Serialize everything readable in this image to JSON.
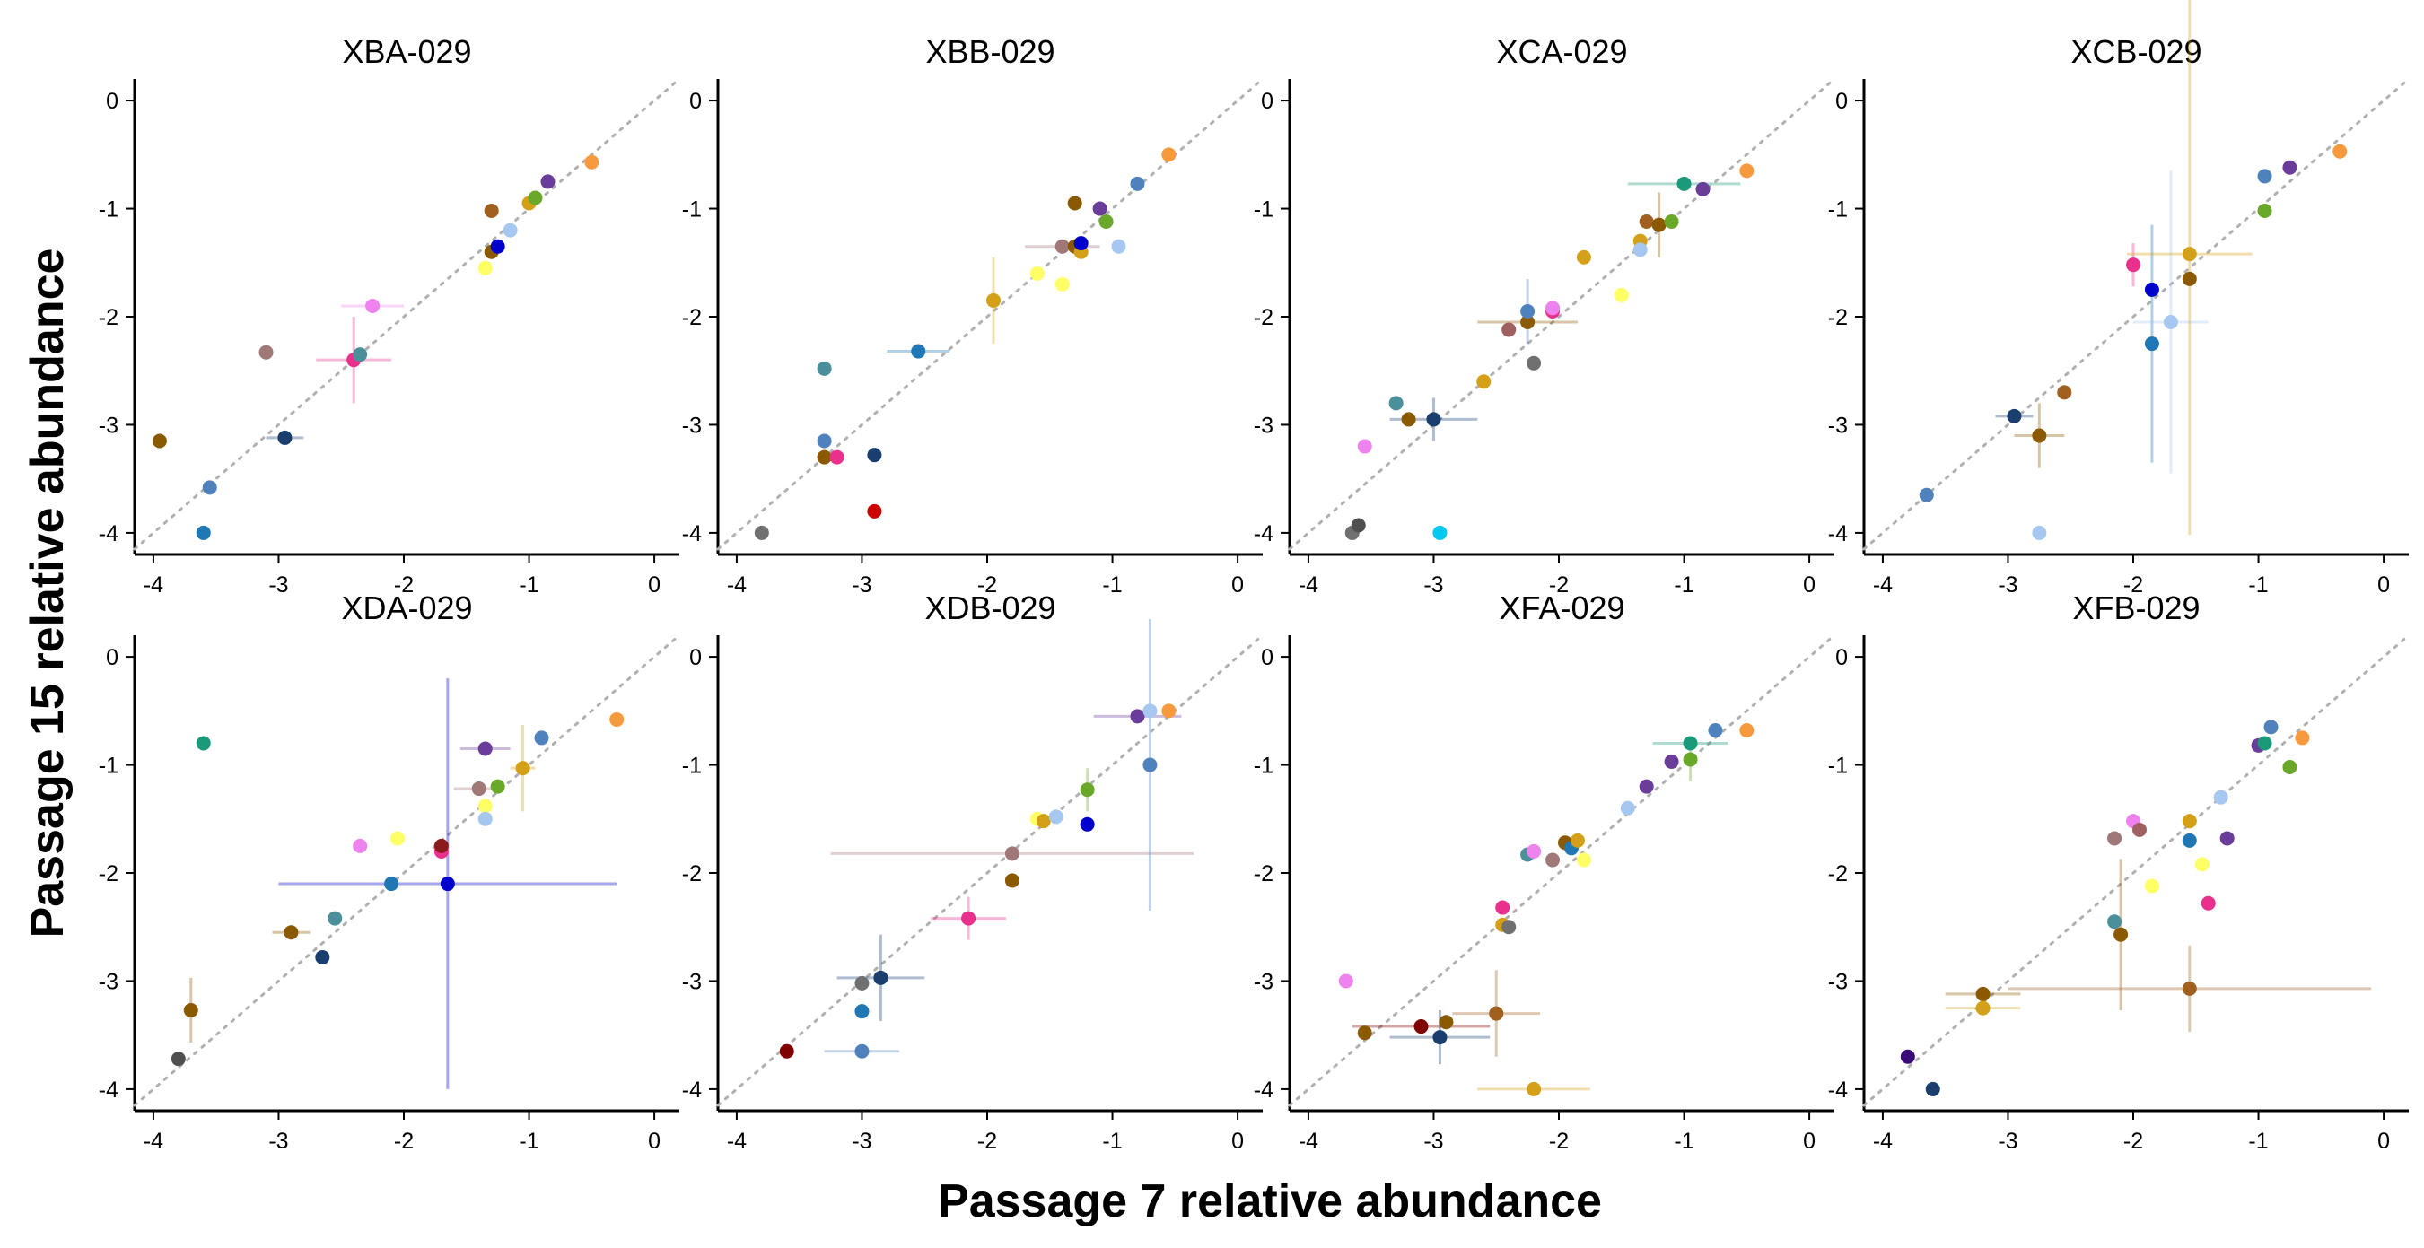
{
  "chart_data": {
    "type": "scatter",
    "xlabel": "Passage 7 relative abundance",
    "ylabel": "Passage 15 relative abundance",
    "xlim": [
      -4.15,
      0.2
    ],
    "ylim": [
      -4.2,
      0.2
    ],
    "x_ticks": [
      "-4",
      "-3",
      "-2",
      "-1",
      "0"
    ],
    "y_ticks": [
      "0",
      "-1",
      "-2",
      "-3",
      "-4"
    ],
    "reference_line": "y = x (dotted gray)",
    "grid": false,
    "legend": "none",
    "panels": [
      {
        "title": "XBA-029",
        "points": [
          {
            "x": -3.95,
            "y": -3.15,
            "color": "#8b5a00"
          },
          {
            "x": -3.6,
            "y": -4.0,
            "color": "#1f77b4"
          },
          {
            "x": -3.55,
            "y": -3.58,
            "color": "#4f81bd"
          },
          {
            "x": -2.95,
            "y": -3.12,
            "color": "#1a3f6f",
            "xerr": 0.15
          },
          {
            "x": -3.1,
            "y": -2.33,
            "color": "#a07878"
          },
          {
            "x": -2.4,
            "y": -2.4,
            "color": "#e8308c",
            "xerr": 0.3,
            "yerr": 0.4
          },
          {
            "x": -2.35,
            "y": -2.35,
            "color": "#4a8f9a"
          },
          {
            "x": -2.25,
            "y": -1.9,
            "color": "#ee82ee",
            "xerr": 0.25
          },
          {
            "x": -1.35,
            "y": -1.55,
            "color": "#ffff66"
          },
          {
            "x": -1.3,
            "y": -1.4,
            "color": "#8b5a00"
          },
          {
            "x": -1.25,
            "y": -1.35,
            "color": "#0000cc"
          },
          {
            "x": -1.15,
            "y": -1.2,
            "color": "#a6c8f0"
          },
          {
            "x": -1.3,
            "y": -1.02,
            "color": "#a06020"
          },
          {
            "x": -1.0,
            "y": -0.95,
            "color": "#d4a017"
          },
          {
            "x": -0.95,
            "y": -0.9,
            "color": "#6aa82a"
          },
          {
            "x": -0.85,
            "y": -0.75,
            "color": "#6a3d9a"
          },
          {
            "x": -0.5,
            "y": -0.57,
            "color": "#f79a3e"
          }
        ]
      },
      {
        "title": "XBB-029",
        "points": [
          {
            "x": -3.8,
            "y": -4.0,
            "color": "#707070"
          },
          {
            "x": -3.3,
            "y": -3.15,
            "color": "#4f81bd"
          },
          {
            "x": -3.3,
            "y": -3.3,
            "color": "#8b5a00"
          },
          {
            "x": -3.2,
            "y": -3.3,
            "color": "#e8308c"
          },
          {
            "x": -2.9,
            "y": -3.28,
            "color": "#1a3f6f"
          },
          {
            "x": -2.9,
            "y": -3.8,
            "color": "#cc0000"
          },
          {
            "x": -3.3,
            "y": -2.48,
            "color": "#4a8f9a"
          },
          {
            "x": -2.55,
            "y": -2.32,
            "color": "#1f77b4",
            "xerr": 0.25
          },
          {
            "x": -1.95,
            "y": -1.85,
            "color": "#d4a017",
            "yerr": 0.4
          },
          {
            "x": -1.6,
            "y": -1.6,
            "color": "#ffff66"
          },
          {
            "x": -1.4,
            "y": -1.7,
            "color": "#ffff66"
          },
          {
            "x": -1.4,
            "y": -1.35,
            "color": "#a07878",
            "xerr": 0.3
          },
          {
            "x": -1.3,
            "y": -1.35,
            "color": "#8b5a00"
          },
          {
            "x": -1.25,
            "y": -1.4,
            "color": "#d4a017"
          },
          {
            "x": -1.25,
            "y": -1.32,
            "color": "#0000cc"
          },
          {
            "x": -1.3,
            "y": -0.95,
            "color": "#8b5a00"
          },
          {
            "x": -1.1,
            "y": -1.0,
            "color": "#6a3d9a"
          },
          {
            "x": -1.05,
            "y": -1.12,
            "color": "#6aa82a"
          },
          {
            "x": -0.95,
            "y": -1.35,
            "color": "#a6c8f0"
          },
          {
            "x": -0.8,
            "y": -0.77,
            "color": "#4f81bd"
          },
          {
            "x": -0.55,
            "y": -0.5,
            "color": "#f79a3e"
          }
        ]
      },
      {
        "title": "XCA-029",
        "points": [
          {
            "x": -3.65,
            "y": -4.0,
            "color": "#707070"
          },
          {
            "x": -3.6,
            "y": -3.93,
            "color": "#505050"
          },
          {
            "x": -3.55,
            "y": -3.2,
            "color": "#ee82ee"
          },
          {
            "x": -3.3,
            "y": -2.8,
            "color": "#4a8f9a"
          },
          {
            "x": -3.2,
            "y": -2.95,
            "color": "#8b5a00"
          },
          {
            "x": -3.0,
            "y": -2.95,
            "color": "#1a3f6f",
            "xerr": 0.35,
            "yerr": 0.2
          },
          {
            "x": -2.95,
            "y": -4.0,
            "color": "#00c8f0"
          },
          {
            "x": -2.6,
            "y": -2.6,
            "color": "#d4a017"
          },
          {
            "x": -2.4,
            "y": -2.12,
            "color": "#a06060"
          },
          {
            "x": -2.25,
            "y": -2.05,
            "color": "#8b5a00",
            "xerr": 0.4
          },
          {
            "x": -2.25,
            "y": -1.95,
            "color": "#4f81bd",
            "yerr": 0.3
          },
          {
            "x": -2.2,
            "y": -2.43,
            "color": "#707070"
          },
          {
            "x": -2.05,
            "y": -1.95,
            "color": "#e8308c"
          },
          {
            "x": -2.05,
            "y": -1.92,
            "color": "#ee82ee"
          },
          {
            "x": -1.8,
            "y": -1.45,
            "color": "#d4a017"
          },
          {
            "x": -1.5,
            "y": -1.8,
            "color": "#ffff66"
          },
          {
            "x": -1.35,
            "y": -1.3,
            "color": "#d4a017"
          },
          {
            "x": -1.35,
            "y": -1.38,
            "color": "#a6c8f0"
          },
          {
            "x": -1.3,
            "y": -1.12,
            "color": "#a06020"
          },
          {
            "x": -1.2,
            "y": -1.15,
            "color": "#8b5a00",
            "yerr": 0.3
          },
          {
            "x": -1.1,
            "y": -1.12,
            "color": "#6aa82a"
          },
          {
            "x": -1.0,
            "y": -0.77,
            "color": "#1a9a78",
            "xerr": 0.45
          },
          {
            "x": -0.85,
            "y": -0.82,
            "color": "#6a3d9a"
          },
          {
            "x": -0.5,
            "y": -0.65,
            "color": "#f79a3e"
          }
        ]
      },
      {
        "title": "XCB-029",
        "points": [
          {
            "x": -3.65,
            "y": -3.65,
            "color": "#4f81bd"
          },
          {
            "x": -2.95,
            "y": -2.92,
            "color": "#1a3f6f",
            "xerr": 0.15
          },
          {
            "x": -2.75,
            "y": -3.1,
            "color": "#8b5a00",
            "xerr": 0.2,
            "yerr": 0.3
          },
          {
            "x": -2.75,
            "y": -4.0,
            "color": "#a6c8f0"
          },
          {
            "x": -2.55,
            "y": -2.7,
            "color": "#a06020"
          },
          {
            "x": -2.0,
            "y": -1.52,
            "color": "#e8308c",
            "yerr": 0.2
          },
          {
            "x": -1.85,
            "y": -1.75,
            "color": "#0000cc"
          },
          {
            "x": -1.85,
            "y": -2.25,
            "color": "#1f77b4",
            "yerr": 1.1
          },
          {
            "x": -1.7,
            "y": -2.05,
            "color": "#a6c8f0",
            "xerr": 0.3,
            "yerr": 1.4
          },
          {
            "x": -1.55,
            "y": -1.42,
            "color": "#d4a017",
            "xerr": 0.5,
            "yerr": 2.6
          },
          {
            "x": -1.55,
            "y": -1.65,
            "color": "#8b5a00"
          },
          {
            "x": -0.95,
            "y": -1.02,
            "color": "#6aa82a"
          },
          {
            "x": -0.95,
            "y": -0.7,
            "color": "#4f81bd"
          },
          {
            "x": -0.75,
            "y": -0.62,
            "color": "#6a3d9a"
          },
          {
            "x": -0.35,
            "y": -0.47,
            "color": "#f79a3e"
          }
        ]
      },
      {
        "title": "XDA-029",
        "points": [
          {
            "x": -3.8,
            "y": -3.72,
            "color": "#505050"
          },
          {
            "x": -3.7,
            "y": -3.27,
            "color": "#8b5a00",
            "yerr": 0.3
          },
          {
            "x": -3.6,
            "y": -0.8,
            "color": "#1a9a78"
          },
          {
            "x": -2.9,
            "y": -2.55,
            "color": "#8b5a00",
            "xerr": 0.15
          },
          {
            "x": -2.65,
            "y": -2.78,
            "color": "#1a3f6f"
          },
          {
            "x": -2.55,
            "y": -2.42,
            "color": "#4a8f9a"
          },
          {
            "x": -2.35,
            "y": -1.75,
            "color": "#ee82ee"
          },
          {
            "x": -2.05,
            "y": -1.68,
            "color": "#ffff66"
          },
          {
            "x": -2.1,
            "y": -2.1,
            "color": "#1f77b4"
          },
          {
            "x": -1.7,
            "y": -1.8,
            "color": "#e8308c"
          },
          {
            "x": -1.7,
            "y": -1.75,
            "color": "#8b1a1a"
          },
          {
            "x": -1.65,
            "y": -2.1,
            "color": "#0000cc",
            "xerr": 1.35,
            "yerr": 1.9
          },
          {
            "x": -1.4,
            "y": -1.22,
            "color": "#a07878",
            "xerr": 0.2
          },
          {
            "x": -1.35,
            "y": -1.38,
            "color": "#ffff66"
          },
          {
            "x": -1.35,
            "y": -1.5,
            "color": "#a6c8f0"
          },
          {
            "x": -1.35,
            "y": -0.85,
            "color": "#6a3d9a",
            "xerr": 0.2
          },
          {
            "x": -1.25,
            "y": -1.2,
            "color": "#6aa82a"
          },
          {
            "x": -1.05,
            "y": -1.03,
            "color": "#d4a017",
            "xerr": 0.1,
            "yerr": 0.4
          },
          {
            "x": -0.9,
            "y": -0.75,
            "color": "#4f81bd"
          },
          {
            "x": -0.3,
            "y": -0.58,
            "color": "#f79a3e"
          }
        ]
      },
      {
        "title": "XDB-029",
        "points": [
          {
            "x": -3.6,
            "y": -3.65,
            "color": "#800000"
          },
          {
            "x": -3.0,
            "y": -3.65,
            "color": "#4f81bd",
            "xerr": 0.3
          },
          {
            "x": -3.0,
            "y": -3.28,
            "color": "#1f77b4"
          },
          {
            "x": -3.0,
            "y": -3.02,
            "color": "#707070"
          },
          {
            "x": -2.85,
            "y": -2.97,
            "color": "#1a3f6f",
            "xerr": 0.35,
            "yerr": 0.4
          },
          {
            "x": -2.15,
            "y": -2.42,
            "color": "#e8308c",
            "xerr": 0.3,
            "yerr": 0.2
          },
          {
            "x": -1.8,
            "y": -1.82,
            "color": "#a07878",
            "xerr": 1.45
          },
          {
            "x": -1.8,
            "y": -2.07,
            "color": "#8b5a00"
          },
          {
            "x": -1.6,
            "y": -1.5,
            "color": "#ffff66"
          },
          {
            "x": -1.55,
            "y": -1.52,
            "color": "#d4a017"
          },
          {
            "x": -1.45,
            "y": -1.48,
            "color": "#a6c8f0"
          },
          {
            "x": -1.2,
            "y": -1.55,
            "color": "#0000cc"
          },
          {
            "x": -1.2,
            "y": -1.23,
            "color": "#6aa82a",
            "yerr": 0.2
          },
          {
            "x": -0.8,
            "y": -0.55,
            "color": "#6a3d9a",
            "xerr": 0.35
          },
          {
            "x": -0.7,
            "y": -1.0,
            "color": "#4f81bd",
            "yerr": 1.35
          },
          {
            "x": -0.7,
            "y": -0.5,
            "color": "#a6c8f0"
          },
          {
            "x": -0.55,
            "y": -0.5,
            "color": "#f79a3e"
          }
        ]
      },
      {
        "title": "XFA-029",
        "points": [
          {
            "x": -3.7,
            "y": -3.0,
            "color": "#ee82ee"
          },
          {
            "x": -3.55,
            "y": -3.48,
            "color": "#8b5a00"
          },
          {
            "x": -3.1,
            "y": -3.42,
            "color": "#800000",
            "xerr": 0.55
          },
          {
            "x": -2.95,
            "y": -3.52,
            "color": "#1a3f6f",
            "xerr": 0.4,
            "yerr": 0.25
          },
          {
            "x": -2.9,
            "y": -3.38,
            "color": "#8b5a00"
          },
          {
            "x": -2.5,
            "y": -3.3,
            "color": "#a06020",
            "xerr": 0.35,
            "yerr": 0.4
          },
          {
            "x": -2.2,
            "y": -4.0,
            "color": "#d4a017",
            "xerr": 0.45
          },
          {
            "x": -2.45,
            "y": -2.32,
            "color": "#e8308c"
          },
          {
            "x": -2.45,
            "y": -2.48,
            "color": "#d4a017"
          },
          {
            "x": -2.4,
            "y": -2.5,
            "color": "#707070"
          },
          {
            "x": -2.25,
            "y": -1.83,
            "color": "#4a8f9a"
          },
          {
            "x": -2.2,
            "y": -1.8,
            "color": "#ee82ee"
          },
          {
            "x": -2.05,
            "y": -1.88,
            "color": "#a07878"
          },
          {
            "x": -1.95,
            "y": -1.72,
            "color": "#8b5a00"
          },
          {
            "x": -1.9,
            "y": -1.77,
            "color": "#1f77b4"
          },
          {
            "x": -1.85,
            "y": -1.7,
            "color": "#d4a017"
          },
          {
            "x": -1.8,
            "y": -1.88,
            "color": "#ffff66"
          },
          {
            "x": -1.45,
            "y": -1.4,
            "color": "#a6c8f0"
          },
          {
            "x": -1.3,
            "y": -1.2,
            "color": "#6a3d9a"
          },
          {
            "x": -1.1,
            "y": -0.97,
            "color": "#6a3d9a"
          },
          {
            "x": -0.95,
            "y": -0.8,
            "color": "#1a9a78",
            "xerr": 0.3
          },
          {
            "x": -0.95,
            "y": -0.95,
            "color": "#6aa82a",
            "yerr": 0.2
          },
          {
            "x": -0.75,
            "y": -0.68,
            "color": "#4f81bd"
          },
          {
            "x": -0.5,
            "y": -0.68,
            "color": "#f79a3e"
          }
        ]
      },
      {
        "title": "XFB-029",
        "points": [
          {
            "x": -3.8,
            "y": -3.7,
            "color": "#3a0a78"
          },
          {
            "x": -3.6,
            "y": -4.0,
            "color": "#1a3f6f"
          },
          {
            "x": -3.2,
            "y": -3.12,
            "color": "#8b5a00",
            "xerr": 0.3
          },
          {
            "x": -3.2,
            "y": -3.25,
            "color": "#d4a017",
            "xerr": 0.3
          },
          {
            "x": -2.15,
            "y": -2.45,
            "color": "#4a8f9a"
          },
          {
            "x": -2.1,
            "y": -2.57,
            "color": "#8b5a00",
            "yerr": 0.7
          },
          {
            "x": -2.15,
            "y": -1.68,
            "color": "#a07878"
          },
          {
            "x": -2.0,
            "y": -1.52,
            "color": "#ee82ee"
          },
          {
            "x": -1.95,
            "y": -1.6,
            "color": "#a06060"
          },
          {
            "x": -1.85,
            "y": -2.12,
            "color": "#ffff66"
          },
          {
            "x": -1.55,
            "y": -3.07,
            "color": "#a06020",
            "xerr": 1.45,
            "yerr": 0.4
          },
          {
            "x": -1.55,
            "y": -1.52,
            "color": "#d4a017"
          },
          {
            "x": -1.55,
            "y": -1.7,
            "color": "#1f77b4"
          },
          {
            "x": -1.45,
            "y": -1.92,
            "color": "#ffff66"
          },
          {
            "x": -1.4,
            "y": -2.28,
            "color": "#e8308c"
          },
          {
            "x": -1.3,
            "y": -1.3,
            "color": "#a6c8f0"
          },
          {
            "x": -1.25,
            "y": -1.68,
            "color": "#6a3d9a"
          },
          {
            "x": -1.0,
            "y": -0.82,
            "color": "#6a3d9a"
          },
          {
            "x": -0.95,
            "y": -0.8,
            "color": "#1a9a78"
          },
          {
            "x": -0.9,
            "y": -0.65,
            "color": "#4f81bd"
          },
          {
            "x": -0.75,
            "y": -1.02,
            "color": "#6aa82a"
          },
          {
            "x": -0.65,
            "y": -0.75,
            "color": "#f79a3e"
          }
        ]
      }
    ]
  }
}
